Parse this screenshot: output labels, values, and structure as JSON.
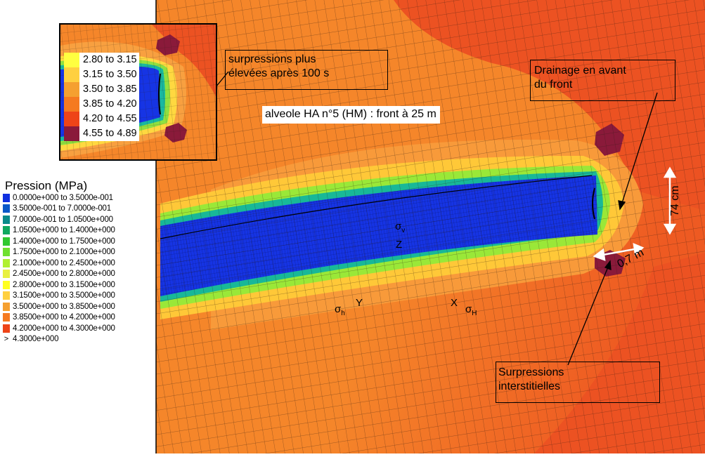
{
  "annotations": {
    "inset_callout": "surpressions plus\nélevées après 100 s",
    "drainage": "Drainage en avant\ndu front",
    "interstitial": "Surpressions\ninterstitielles",
    "title": "alveole HA n°5 (HM) : front à 25 m",
    "dim_vertical": "74 cm",
    "dim_horizontal": "0,7 m"
  },
  "axes": {
    "sigma": "σ",
    "sub_v": "v",
    "sub_h": "h",
    "sub_H": "H",
    "z": "Z",
    "y": "Y",
    "x": "X"
  },
  "legend": {
    "title": "Pression (MPa)",
    "entries": [
      {
        "label": "0.0000e+000 to  3.5000e-001",
        "color": "#1030e0"
      },
      {
        "label": "3.5000e-001 to  7.0000e-001",
        "color": "#0a58c8"
      },
      {
        "label": "7.0000e-001 to  1.0500e+000",
        "color": "#0a8a8a"
      },
      {
        "label": "1.0500e+000 to  1.4000e+000",
        "color": "#10a860"
      },
      {
        "label": "1.4000e+000 to  1.7500e+000",
        "color": "#30c830"
      },
      {
        "label": "1.7500e+000 to  2.1000e+000",
        "color": "#70e030"
      },
      {
        "label": "2.1000e+000 to  2.4500e+000",
        "color": "#b0f030"
      },
      {
        "label": "2.4500e+000 to  2.8000e+000",
        "color": "#e8f040"
      },
      {
        "label": "2.8000e+000 to  3.1500e+000",
        "color": "#ffff20"
      },
      {
        "label": "3.1500e+000 to  3.5000e+000",
        "color": "#ffd040"
      },
      {
        "label": "3.5000e+000 to  3.8500e+000",
        "color": "#f5a030"
      },
      {
        "label": "3.8500e+000 to  4.2000e+000",
        "color": "#f57a20"
      },
      {
        "label": "4.2000e+000 to  4.3000e+000",
        "color": "#ee4418"
      },
      {
        "label": "4.3000e+000",
        "prefix": ">",
        "color": "#8a1a3a"
      }
    ]
  },
  "inset_legend": [
    {
      "label": "2.80  to  3.15",
      "color": "#ffff40"
    },
    {
      "label": "3.15  to  3.50",
      "color": "#ffd040"
    },
    {
      "label": "3.50  to  3.85",
      "color": "#f5a030"
    },
    {
      "label": "3.85  to  4.20",
      "color": "#f57a20"
    },
    {
      "label": "4.20  to  4.55",
      "color": "#ee4418"
    },
    {
      "label": "4.55  to  4.89",
      "color": "#8a1a3a"
    }
  ],
  "colors": {
    "field_orange": "#f5862a",
    "field_red": "#ec5222",
    "field_light": "#f8a040",
    "core_blue": "#1634e4",
    "dark_core": "#0c1eb0",
    "hot": "#8a1a3a",
    "mesh": "#2a1a10"
  }
}
